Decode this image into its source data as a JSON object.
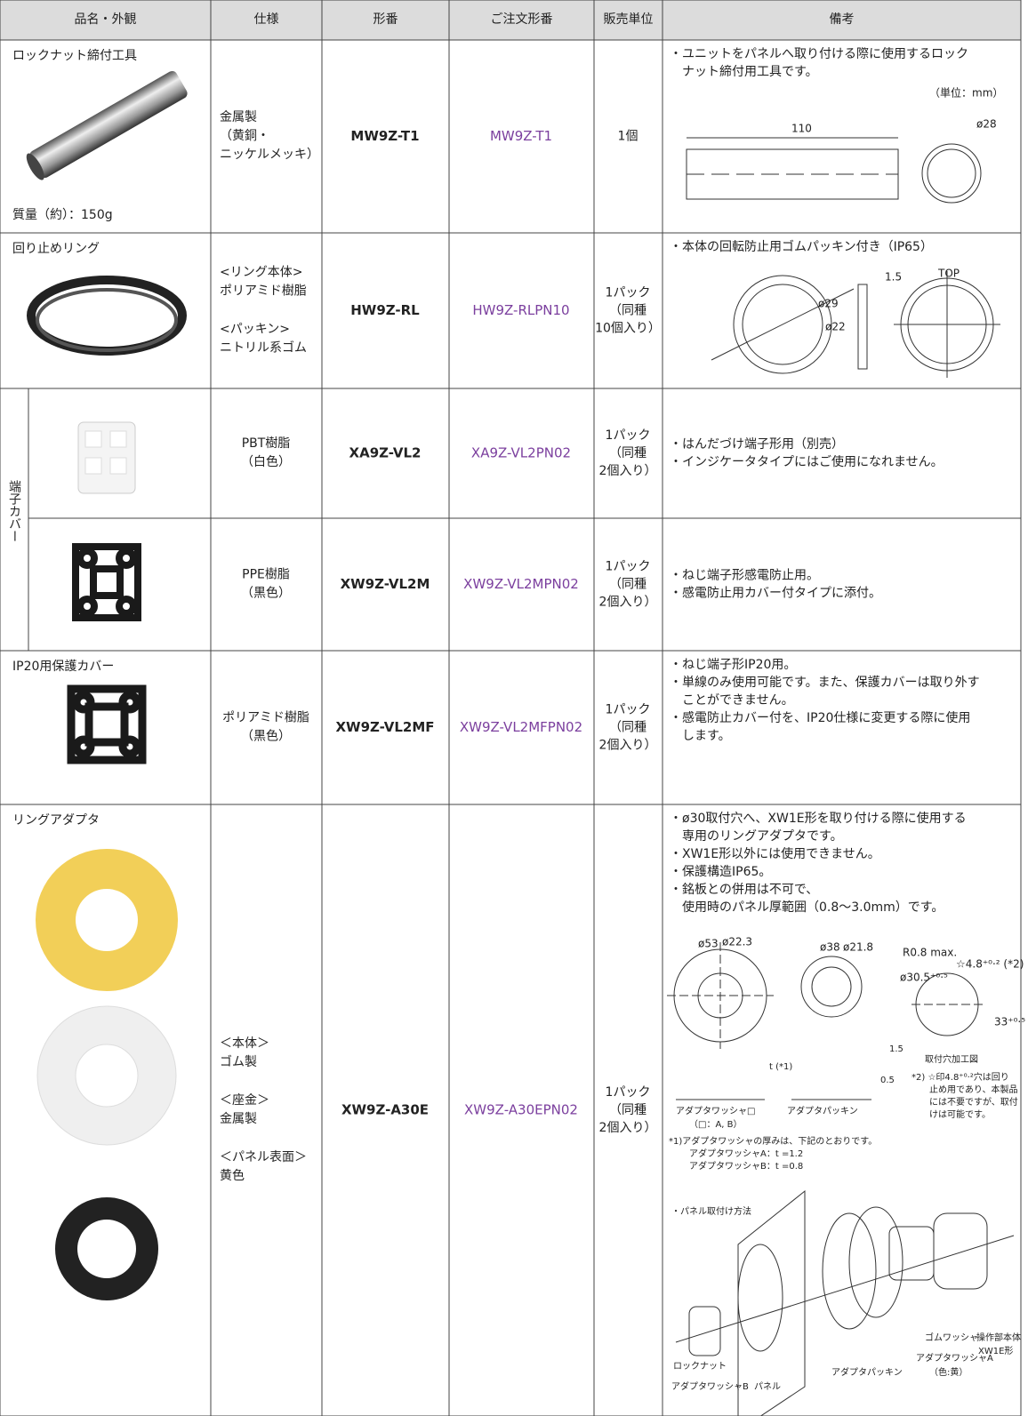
{
  "header": [
    "品名・外観",
    "仕様",
    "形番",
    "ご注文形番",
    "販売単位",
    "備考"
  ],
  "group_label": "端子カバー",
  "rows": [
    {
      "name": "ロックナット締付工具",
      "note": "質量（約）：150g",
      "spec": [
        [
          "金属製",
          "（黄銅・",
          "ニッケルメッキ）"
        ]
      ],
      "model": "MW9Z-T1",
      "order": "MW9Z-T1",
      "unit": [
        "1個"
      ],
      "remarks": [
        "・ユニットをパネルへ取り付ける際に使用するロック",
        "　ナット締付用工具です。"
      ],
      "figure_labels": [
        "（単位：mm）",
        "110",
        "ø28"
      ]
    },
    {
      "name": "回り止めリング",
      "spec": [
        [
          "<リング本体>",
          "ポリアミド樹脂"
        ],
        [
          "<パッキン>",
          "ニトリル系ゴム"
        ]
      ],
      "model": "HW9Z-RL",
      "order": "HW9Z-RLPN10",
      "unit": [
        "1パック",
        "（同種",
        "10個入り）"
      ],
      "remarks": [
        "・本体の回転防止用ゴムパッキン付き（IP65）"
      ],
      "figure_labels": [
        "1.5",
        "TOP",
        "ø29",
        "ø22"
      ]
    },
    {
      "spec": [
        [
          "PBT樹脂",
          "（白色）"
        ]
      ],
      "model": "XA9Z-VL2",
      "order": "XA9Z-VL2PN02",
      "unit": [
        "1パック",
        "（同種",
        "2個入り）"
      ],
      "remarks": [
        "・はんだづけ端子形用（別売）",
        "・インジケータタイプにはご使用になれません。"
      ]
    },
    {
      "spec": [
        [
          "PPE樹脂",
          "（黒色）"
        ]
      ],
      "model": "XW9Z-VL2M",
      "order": "XW9Z-VL2MPN02",
      "unit": [
        "1パック",
        "（同種",
        "2個入り）"
      ],
      "remarks": [
        "・ねじ端子形感電防止用。",
        "・感電防止用カバー付タイプに添付。"
      ]
    },
    {
      "name": "IP20用保護カバー",
      "spec": [
        [
          "ポリアミド樹脂",
          "（黒色）"
        ]
      ],
      "model": "XW9Z-VL2MF",
      "order": "XW9Z-VL2MFPN02",
      "unit": [
        "1パック",
        "（同種",
        "2個入り）"
      ],
      "remarks": [
        "・ねじ端子形IP20用。",
        "・単線のみ使用可能です。また、保護カバーは取り外す",
        "　ことができません。",
        "・感電防止カバー付を、IP20仕様に変更する際に使用",
        "　します。"
      ]
    },
    {
      "name": "リングアダプタ",
      "spec": [
        [
          "＜本体＞",
          "ゴム製"
        ],
        [
          "＜座金＞",
          "金属製"
        ],
        [
          "＜パネル表面＞",
          "黄色"
        ]
      ],
      "model": "XW9Z-A30E",
      "order": "XW9Z-A30EPN02",
      "unit": [
        "1パック",
        "（同種",
        "2個入り）"
      ],
      "remarks": [
        "・ø30取付穴へ、XW1E形を取り付ける際に使用する",
        "　専用のリングアダプタです。",
        "・XW1E形以外には使用できません。",
        "・保護構造IP65。",
        "・銘板との併用は不可で、",
        "　使用時のパネル厚範囲（0.8〜3.0mm）です。"
      ],
      "figure_labels": [
        "R0.8 max.",
        "☆4.8⁺⁰·² (*2)",
        "ø53",
        "ø22.3",
        "ø38",
        "ø21.8",
        "ø30.5⁺⁰·⁵",
        "33⁺⁰·⁵",
        "取付穴加工図",
        "t (*1)",
        "1.5",
        "0.5",
        "アダプタワッシャ□",
        "（□：A, B）",
        "アダプタパッキン",
        "*2) ☆印4.8⁺⁰·²穴は回り",
        "止め用であり、本製品",
        "には不要ですが、取付",
        "けは可能です。",
        "*1)アダプタワッシャの厚みは、下記のとおりです。",
        "アダプタワッシャA：t =1.2",
        "アダプタワッシャB：t =0.8",
        "・パネル取付け方法",
        "ゴムワッシャ",
        "操作部本体",
        "XW1E形",
        "アダプタワッシャA",
        "（色:黄）",
        "ロックナット",
        "アダプタパッキン",
        "アダプタワッシャB",
        "パネル"
      ]
    }
  ]
}
